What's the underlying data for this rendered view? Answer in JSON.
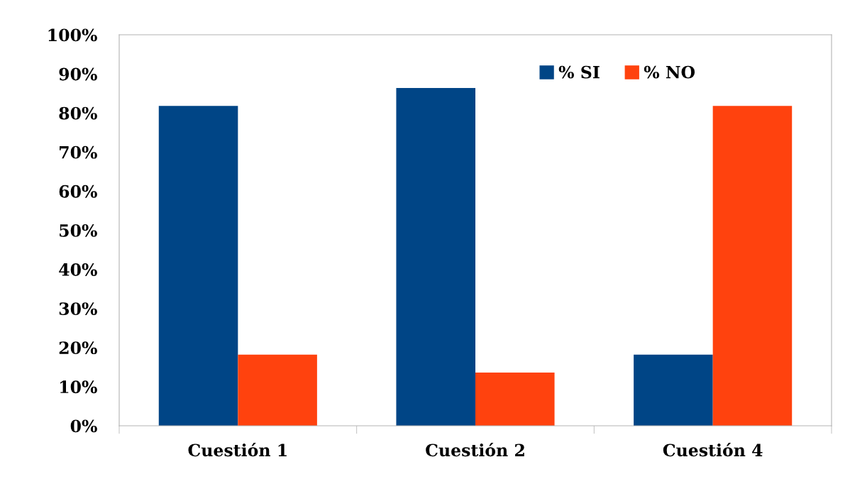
{
  "chart_data": {
    "type": "bar",
    "categories": [
      "Cuestión 1",
      "Cuestión 2",
      "Cuestión 4"
    ],
    "series": [
      {
        "name": "% SI",
        "color": "#004586",
        "values": [
          81.8,
          86.4,
          18.2
        ]
      },
      {
        "name": "% NO",
        "color": "#ff420e",
        "values": [
          18.2,
          13.6,
          81.8
        ]
      }
    ],
    "ylim": [
      0,
      100
    ],
    "yticks": [
      {
        "value": 0,
        "label": "0%"
      },
      {
        "value": 10,
        "label": "10%"
      },
      {
        "value": 20,
        "label": "20%"
      },
      {
        "value": 30,
        "label": "30%"
      },
      {
        "value": 40,
        "label": "40%"
      },
      {
        "value": 50,
        "label": "50%"
      },
      {
        "value": 60,
        "label": "60%"
      },
      {
        "value": 70,
        "label": "70%"
      },
      {
        "value": 80,
        "label": "80%"
      },
      {
        "value": 90,
        "label": "90%"
      },
      {
        "value": 100,
        "label": "100%"
      }
    ],
    "grid": false,
    "legend": "top right"
  }
}
